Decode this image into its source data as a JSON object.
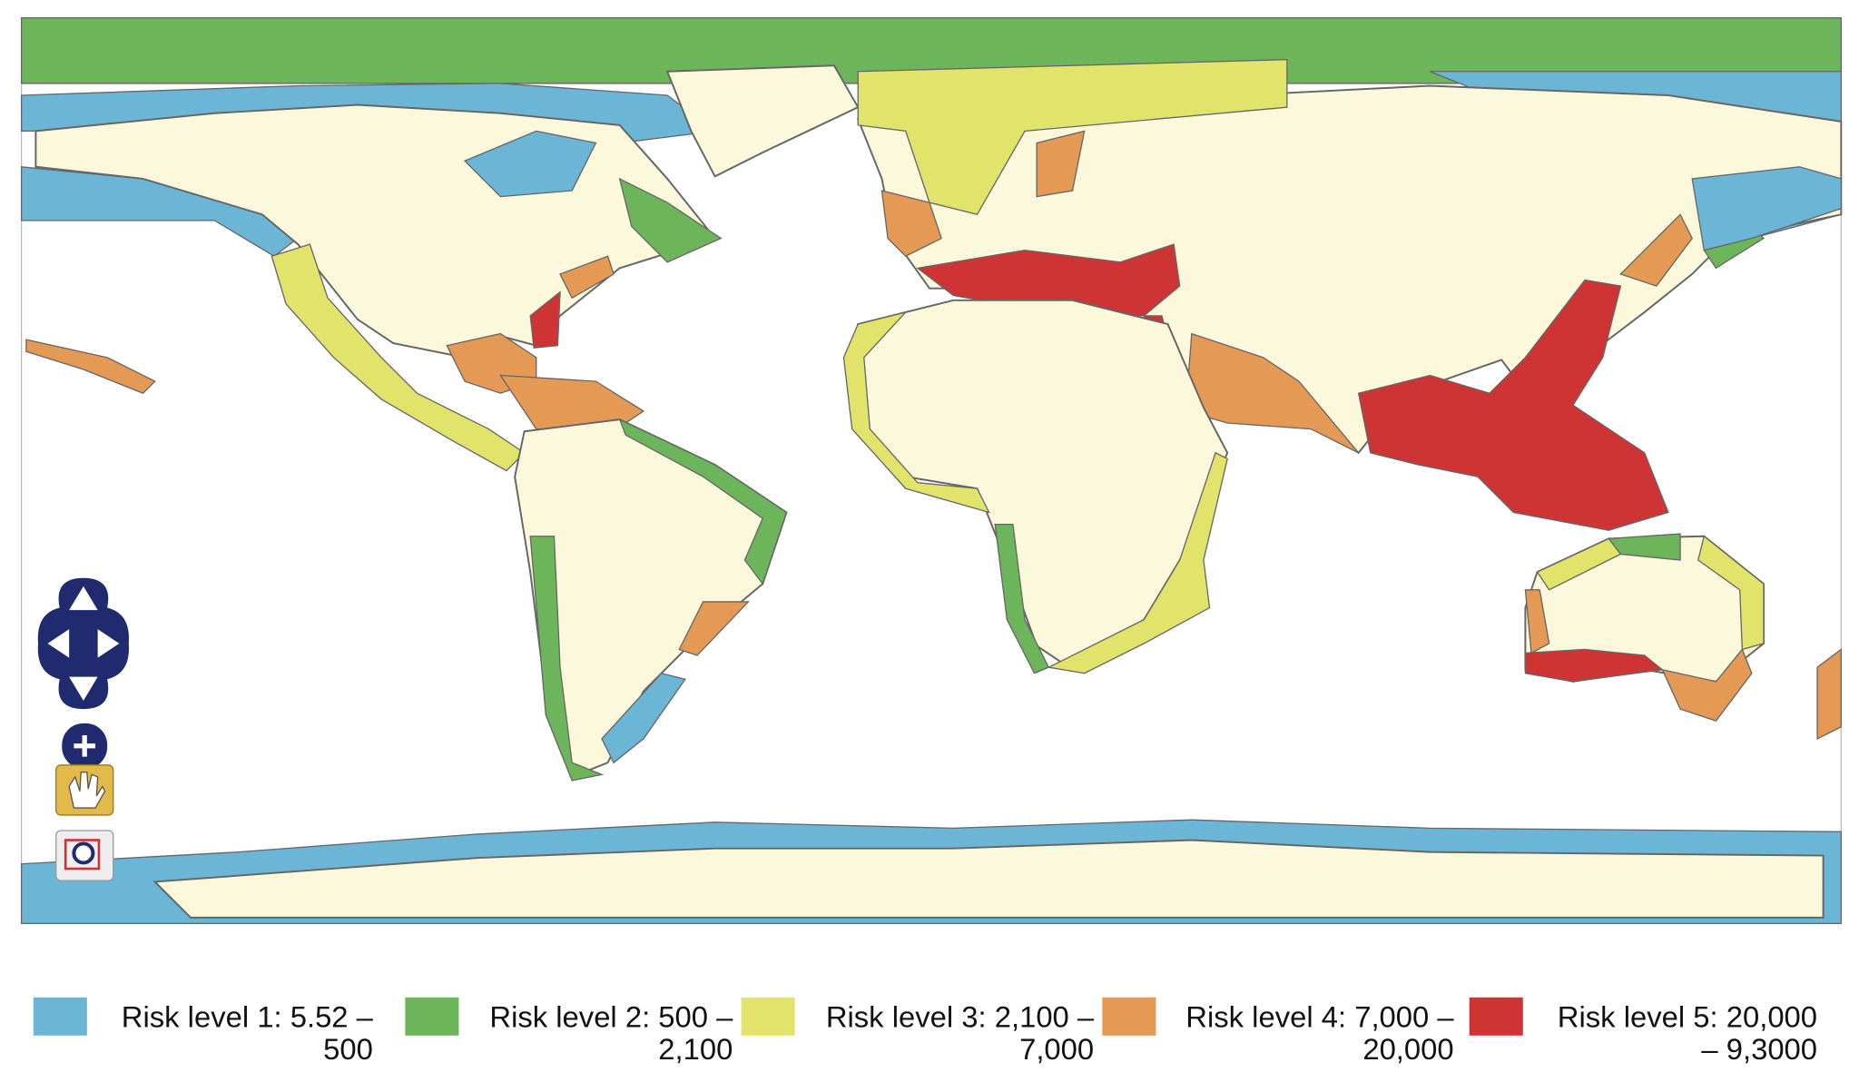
{
  "legend": {
    "items": [
      {
        "color": "#6bb6d6",
        "lines": [
          "Risk level 1: 5.52 –",
          "500"
        ]
      },
      {
        "color": "#6db55a",
        "lines": [
          "Risk level 2: 500 –",
          "2,100"
        ]
      },
      {
        "color": "#e2e36a",
        "lines": [
          "Risk level 3: 2,100 –",
          "7,000"
        ]
      },
      {
        "color": "#e49a55",
        "lines": [
          "Risk level 4: 7,000 –",
          "20,000"
        ]
      },
      {
        "color": "#cf3434",
        "lines": [
          "Risk level 5: 20,000",
          "– 9,3000"
        ]
      }
    ]
  }
}
